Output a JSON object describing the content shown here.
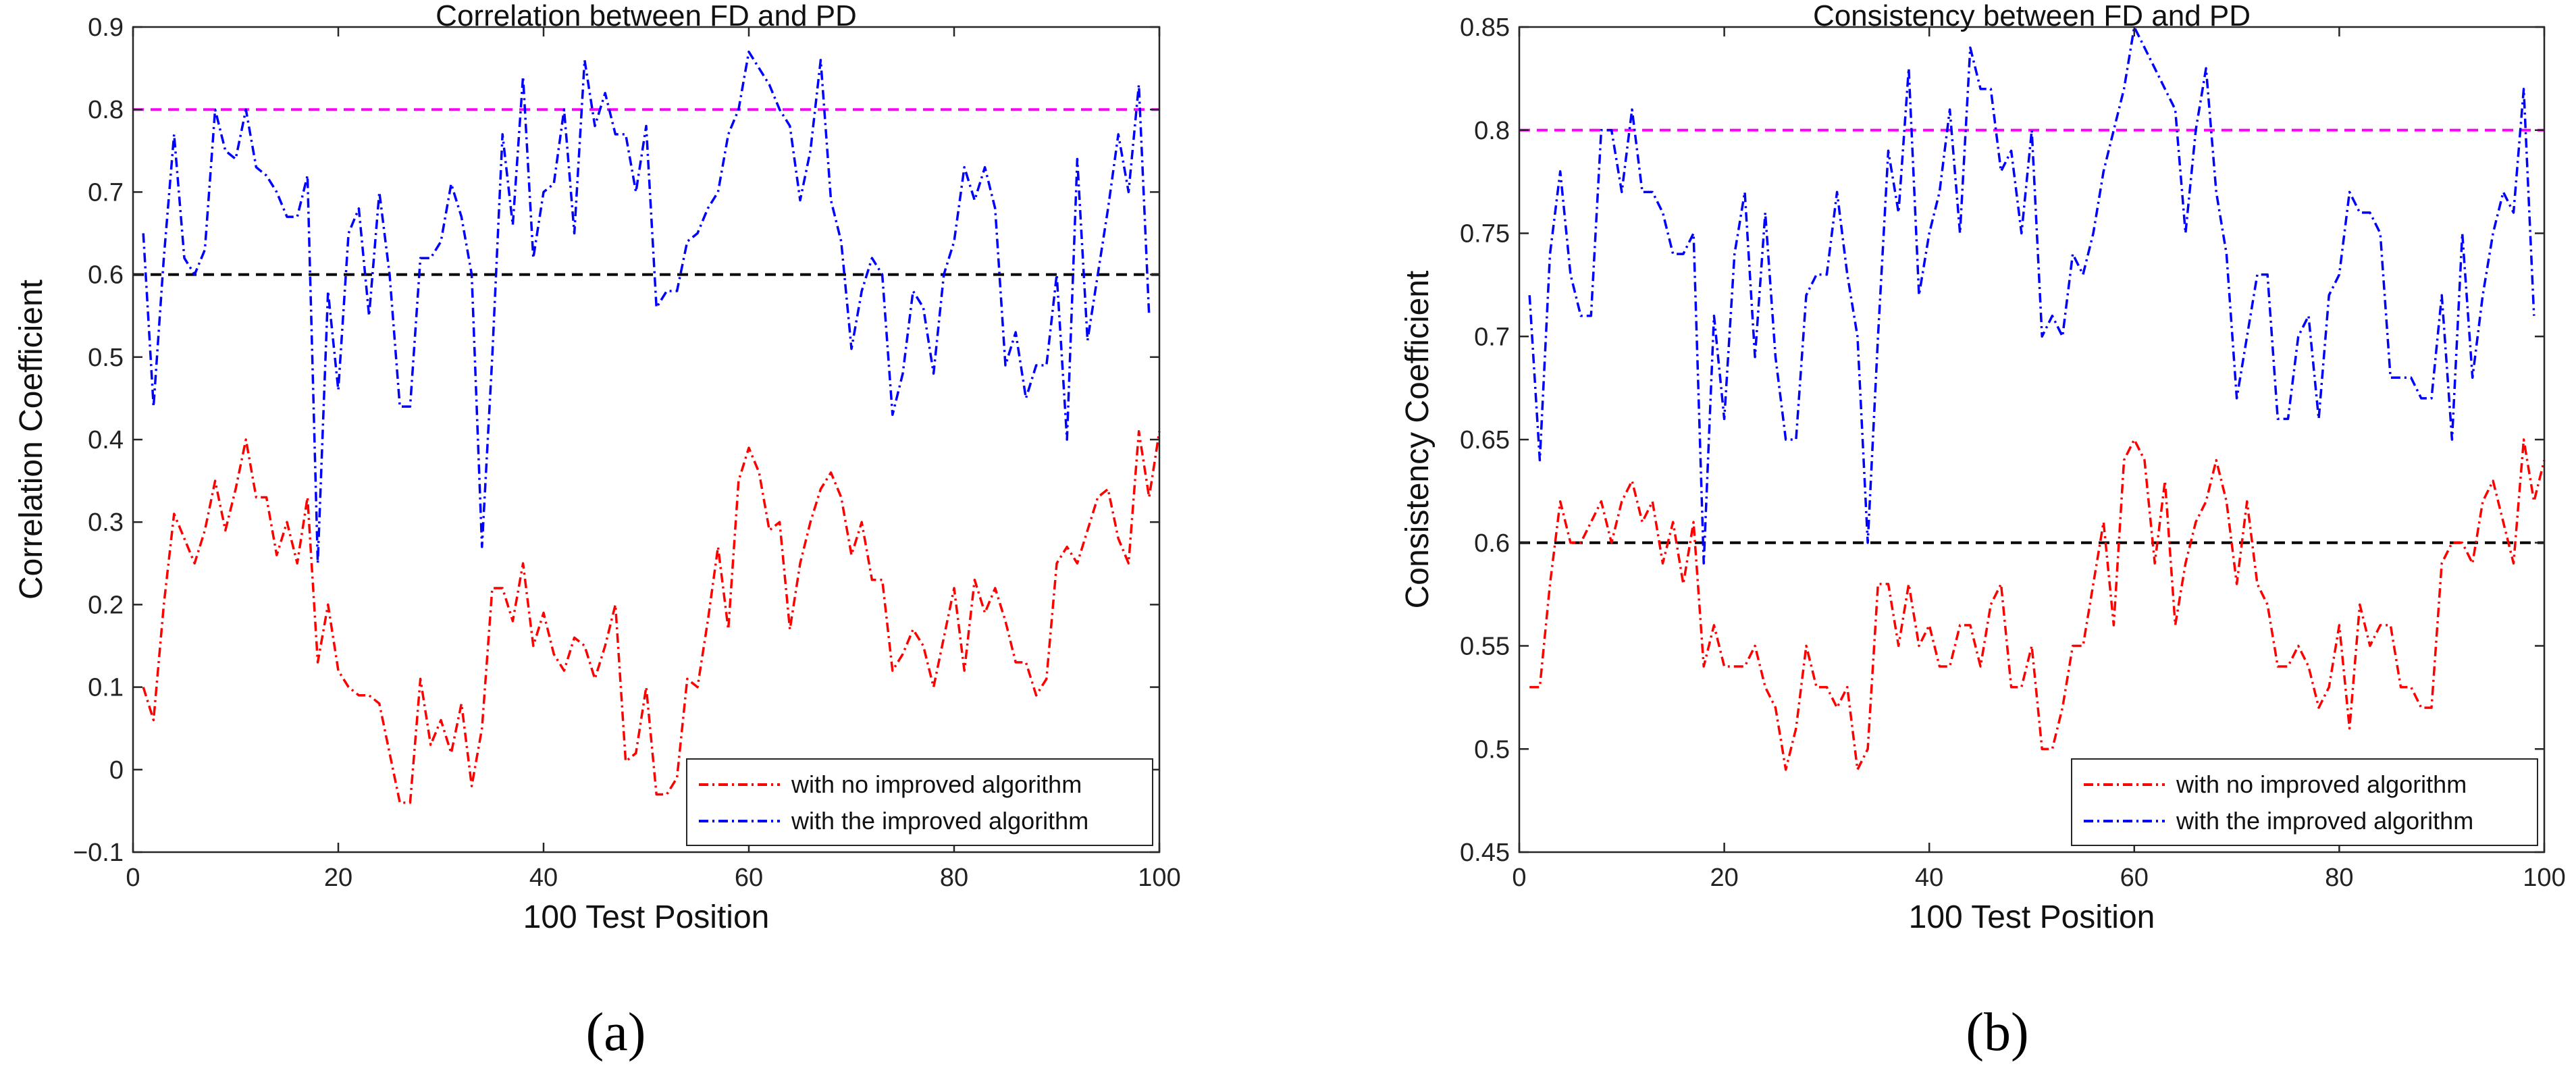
{
  "chart_data": [
    {
      "type": "line",
      "panel_label": "(a)",
      "title": "Correlation between FD and PD",
      "xlabel": "100 Test Position",
      "ylabel": "Correlation Coefficient",
      "xlim": [
        0,
        100
      ],
      "ylim": [
        -0.1,
        0.9
      ],
      "xticks": [
        0,
        20,
        40,
        60,
        80,
        100
      ],
      "xtick_labels": [
        "0",
        "20",
        "40",
        "60",
        "80",
        "100"
      ],
      "yticks": [
        -0.1,
        0,
        0.1,
        0.2,
        0.3,
        0.4,
        0.5,
        0.6,
        0.7,
        0.8,
        0.9
      ],
      "ytick_labels": [
        "−0.1",
        "0",
        "0.1",
        "0.2",
        "0.3",
        "0.4",
        "0.5",
        "0.6",
        "0.7",
        "0.8",
        "0.9"
      ],
      "legend_position": "bottom-right",
      "hlines": [
        {
          "y": 0.8,
          "color": "#ff00ff"
        },
        {
          "y": 0.6,
          "color": "#000000"
        }
      ],
      "series": [
        {
          "name": "with no improved algorithm",
          "color": "#ff0000",
          "x_start": 1,
          "values": [
            0.1,
            0.06,
            0.2,
            0.31,
            0.28,
            0.25,
            0.29,
            0.35,
            0.29,
            0.34,
            0.4,
            0.33,
            0.33,
            0.26,
            0.3,
            0.25,
            0.33,
            0.13,
            0.2,
            0.12,
            0.1,
            0.09,
            0.09,
            0.08,
            0.02,
            -0.04,
            -0.04,
            0.11,
            0.03,
            0.06,
            0.02,
            0.08,
            -0.02,
            0.05,
            0.22,
            0.22,
            0.18,
            0.25,
            0.15,
            0.19,
            0.14,
            0.12,
            0.16,
            0.15,
            0.11,
            0.15,
            0.2,
            0.01,
            0.02,
            0.1,
            -0.03,
            -0.03,
            -0.01,
            0.11,
            0.1,
            0.18,
            0.27,
            0.17,
            0.35,
            0.39,
            0.36,
            0.29,
            0.3,
            0.17,
            0.25,
            0.3,
            0.34,
            0.36,
            0.33,
            0.26,
            0.3,
            0.23,
            0.23,
            0.12,
            0.14,
            0.17,
            0.15,
            0.1,
            0.16,
            0.22,
            0.12,
            0.23,
            0.19,
            0.22,
            0.18,
            0.13,
            0.13,
            0.09,
            0.11,
            0.25,
            0.27,
            0.25,
            0.29,
            0.33,
            0.34,
            0.28,
            0.25,
            0.41,
            0.33,
            0.41
          ]
        },
        {
          "name": "with the improved algorithm",
          "color": "#0000ff",
          "x_start": 1,
          "values": [
            0.65,
            0.44,
            0.62,
            0.77,
            0.62,
            0.6,
            0.63,
            0.8,
            0.75,
            0.74,
            0.8,
            0.73,
            0.72,
            0.7,
            0.67,
            0.67,
            0.72,
            0.25,
            0.58,
            0.46,
            0.65,
            0.68,
            0.55,
            0.7,
            0.6,
            0.44,
            0.44,
            0.62,
            0.62,
            0.64,
            0.71,
            0.67,
            0.6,
            0.27,
            0.5,
            0.77,
            0.66,
            0.84,
            0.62,
            0.7,
            0.71,
            0.8,
            0.65,
            0.86,
            0.78,
            0.82,
            0.77,
            0.77,
            0.7,
            0.78,
            0.56,
            0.58,
            0.58,
            0.64,
            0.65,
            0.68,
            0.7,
            0.77,
            0.8,
            0.87,
            0.85,
            0.83,
            0.8,
            0.78,
            0.69,
            0.75,
            0.86,
            0.69,
            0.64,
            0.51,
            0.58,
            0.62,
            0.6,
            0.43,
            0.48,
            0.58,
            0.56,
            0.48,
            0.6,
            0.64,
            0.73,
            0.69,
            0.73,
            0.68,
            0.49,
            0.53,
            0.45,
            0.49,
            0.49,
            0.6,
            0.4,
            0.74,
            0.52,
            0.6,
            0.68,
            0.77,
            0.7,
            0.83,
            0.55
          ]
        }
      ]
    },
    {
      "type": "line",
      "panel_label": "(b)",
      "title": "Consistency between FD and PD",
      "xlabel": "100 Test Position",
      "ylabel": "Consistency Coefficient",
      "xlim": [
        0,
        100
      ],
      "ylim": [
        0.45,
        0.85
      ],
      "xticks": [
        0,
        20,
        40,
        60,
        80,
        100
      ],
      "xtick_labels": [
        "0",
        "20",
        "40",
        "60",
        "80",
        "100"
      ],
      "yticks": [
        0.45,
        0.5,
        0.55,
        0.6,
        0.65,
        0.7,
        0.75,
        0.8,
        0.85
      ],
      "ytick_labels": [
        "0.45",
        "0.5",
        "0.55",
        "0.6",
        "0.65",
        "0.7",
        "0.75",
        "0.8",
        "0.85"
      ],
      "legend_position": "bottom-right",
      "hlines": [
        {
          "y": 0.8,
          "color": "#ff00ff"
        },
        {
          "y": 0.6,
          "color": "#000000"
        }
      ],
      "series": [
        {
          "name": "with no improved algorithm",
          "color": "#ff0000",
          "x_start": 1,
          "values": [
            0.53,
            0.53,
            0.58,
            0.62,
            0.6,
            0.6,
            0.61,
            0.62,
            0.6,
            0.62,
            0.63,
            0.61,
            0.62,
            0.59,
            0.61,
            0.58,
            0.61,
            0.54,
            0.56,
            0.54,
            0.54,
            0.54,
            0.55,
            0.53,
            0.52,
            0.49,
            0.51,
            0.55,
            0.53,
            0.53,
            0.52,
            0.53,
            0.49,
            0.5,
            0.58,
            0.58,
            0.55,
            0.58,
            0.55,
            0.56,
            0.54,
            0.54,
            0.56,
            0.56,
            0.54,
            0.57,
            0.58,
            0.53,
            0.53,
            0.55,
            0.5,
            0.5,
            0.52,
            0.55,
            0.55,
            0.58,
            0.61,
            0.56,
            0.64,
            0.65,
            0.64,
            0.59,
            0.63,
            0.56,
            0.59,
            0.61,
            0.62,
            0.64,
            0.62,
            0.58,
            0.62,
            0.58,
            0.57,
            0.54,
            0.54,
            0.55,
            0.54,
            0.52,
            0.53,
            0.56,
            0.51,
            0.57,
            0.55,
            0.56,
            0.56,
            0.53,
            0.53,
            0.52,
            0.52,
            0.59,
            0.6,
            0.6,
            0.59,
            0.62,
            0.63,
            0.61,
            0.59,
            0.65,
            0.62,
            0.64
          ]
        },
        {
          "name": "with the improved algorithm",
          "color": "#0000ff",
          "x_start": 1,
          "values": [
            0.72,
            0.64,
            0.74,
            0.78,
            0.73,
            0.71,
            0.71,
            0.8,
            0.8,
            0.77,
            0.81,
            0.77,
            0.77,
            0.76,
            0.74,
            0.74,
            0.75,
            0.59,
            0.71,
            0.66,
            0.74,
            0.77,
            0.69,
            0.76,
            0.69,
            0.65,
            0.65,
            0.72,
            0.73,
            0.73,
            0.77,
            0.73,
            0.7,
            0.6,
            0.7,
            0.79,
            0.76,
            0.83,
            0.72,
            0.75,
            0.77,
            0.81,
            0.75,
            0.84,
            0.82,
            0.82,
            0.78,
            0.79,
            0.75,
            0.8,
            0.7,
            0.71,
            0.7,
            0.74,
            0.73,
            0.75,
            0.78,
            0.8,
            0.82,
            0.85,
            0.84,
            0.83,
            0.82,
            0.81,
            0.75,
            0.8,
            0.83,
            0.77,
            0.74,
            0.67,
            0.7,
            0.73,
            0.73,
            0.66,
            0.66,
            0.7,
            0.71,
            0.66,
            0.72,
            0.73,
            0.77,
            0.76,
            0.76,
            0.75,
            0.68,
            0.68,
            0.68,
            0.67,
            0.67,
            0.72,
            0.65,
            0.75,
            0.68,
            0.72,
            0.75,
            0.77,
            0.76,
            0.82,
            0.71
          ]
        }
      ]
    }
  ]
}
